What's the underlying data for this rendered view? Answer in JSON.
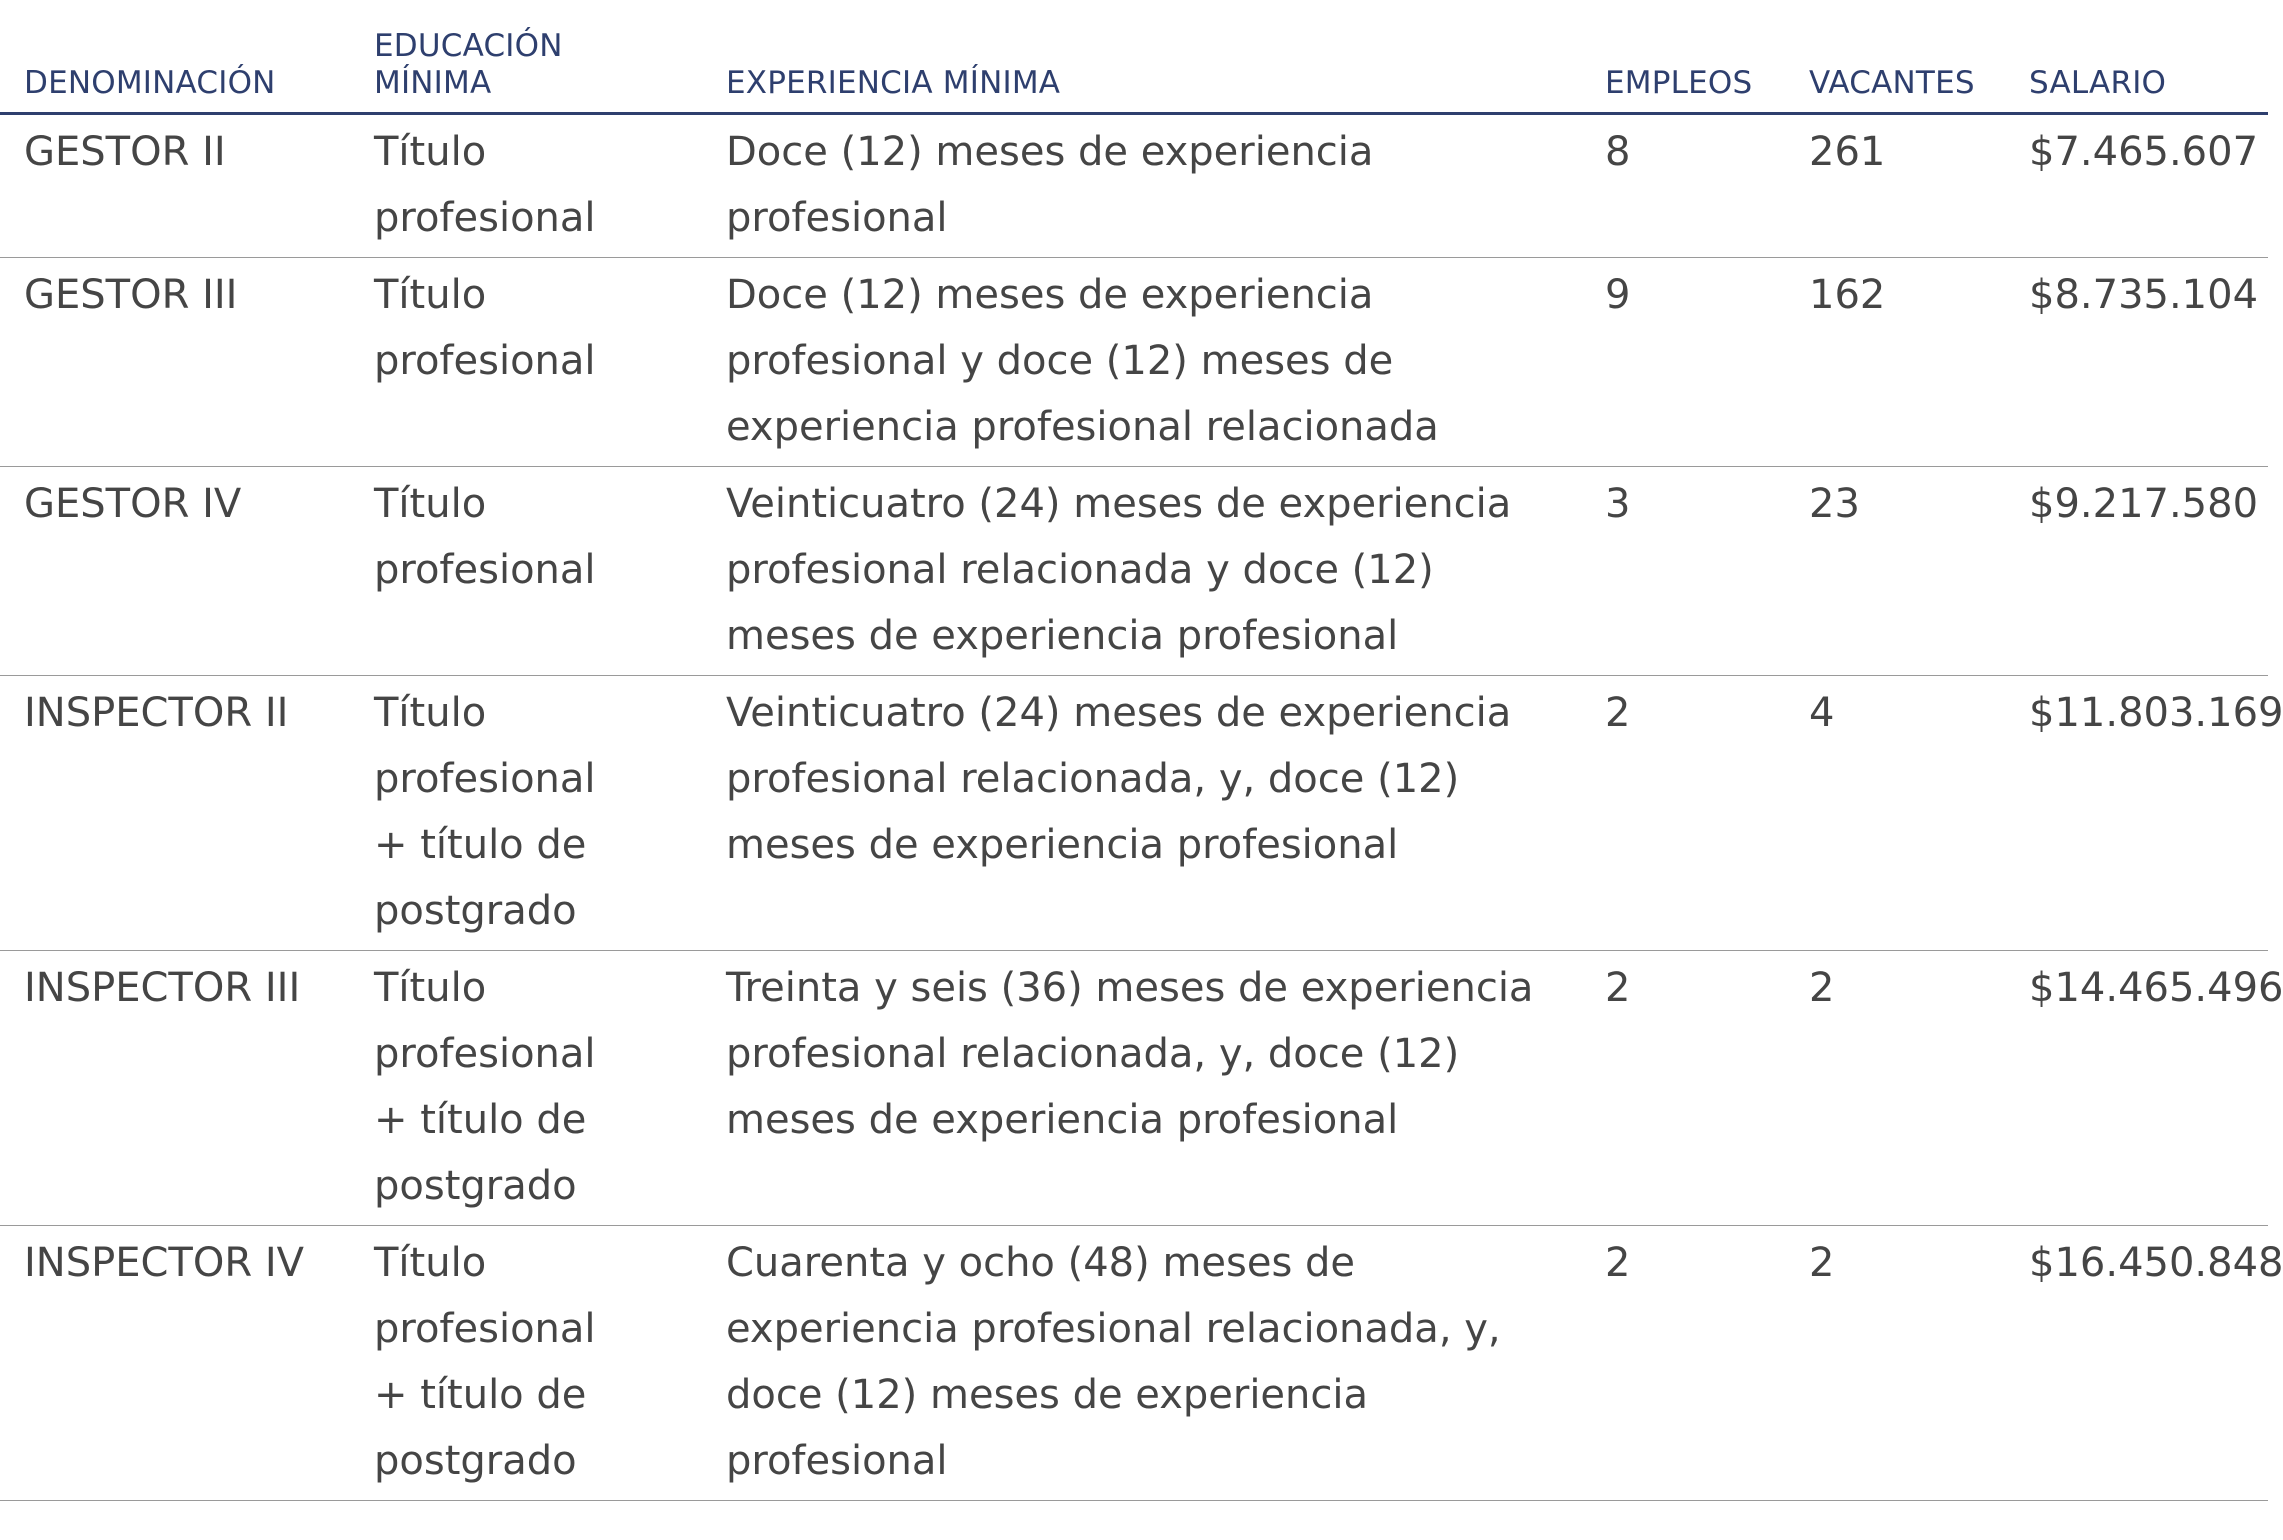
{
  "table": {
    "headers": {
      "denominacion": "DENOMINACIÓN",
      "educacion": "EDUCACIÓN MÍNIMA",
      "experiencia": "EXPERIENCIA MÍNIMA",
      "empleos": "EMPLEOS",
      "vacantes": "VACANTES",
      "salario": "SALARIO"
    },
    "rows": [
      {
        "denominacion": "GESTOR II",
        "educacion": "Título profesional",
        "experiencia": "Doce (12) meses de experiencia profesional",
        "empleos": "8",
        "vacantes": "261",
        "salario": "$7.465.607"
      },
      {
        "denominacion": "GESTOR III",
        "educacion": "Título profesional",
        "experiencia": "Doce (12) meses de experiencia profesional y doce (12) meses de experiencia profesional relacionada",
        "empleos": "9",
        "vacantes": "162",
        "salario": "$8.735.104"
      },
      {
        "denominacion": "GESTOR IV",
        "educacion": "Título profesional",
        "experiencia": "Veinticuatro (24) meses de experiencia profesional relacionada y doce (12) meses de experiencia profesional",
        "empleos": "3",
        "vacantes": "23",
        "salario": "$9.217.580"
      },
      {
        "denominacion": "INSPECTOR II",
        "educacion": "Título profesional + título de postgrado",
        "experiencia": "Veinticuatro (24) meses de experiencia profesional relacionada, y, doce (12) meses de experiencia profesional",
        "empleos": "2",
        "vacantes": "4",
        "salario": "$11.803.169"
      },
      {
        "denominacion": "INSPECTOR III",
        "educacion": "Título profesional + título de postgrado",
        "experiencia": "Treinta y seis (36) meses de experiencia profesional relacionada, y, doce (12) meses de experiencia profesional",
        "empleos": "2",
        "vacantes": "2",
        "salario": "$14.465.496"
      },
      {
        "denominacion": "INSPECTOR IV",
        "educacion": "Título profesional + título de postgrado",
        "experiencia": "Cuarenta y ocho (48) meses de experiencia profesional relacionada, y, doce (12) meses de experiencia profesional",
        "empleos": "2",
        "vacantes": "2",
        "salario": "$16.450.848"
      }
    ]
  },
  "colors": {
    "header_text": "#2e3f6e",
    "body_text": "#454545",
    "row_divider": "#9a9a9a"
  }
}
